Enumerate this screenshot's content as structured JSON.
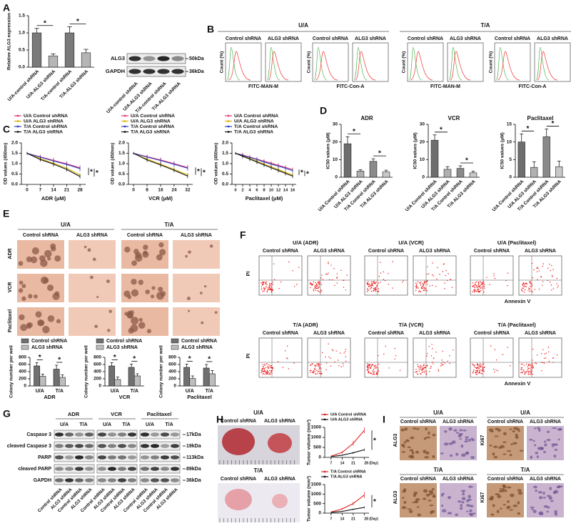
{
  "panel_labels": [
    "A",
    "B",
    "C",
    "D",
    "E",
    "F",
    "G",
    "H",
    "I"
  ],
  "chart_data": [
    {
      "type": "bar",
      "y_label": "Relative ALG3 expression",
      "categories": [
        "U/A-control shRNA",
        "U/A-ALG3 shRNA",
        "T/A-control shRNA",
        "T/A-ALG3 shRNA"
      ],
      "values": [
        1.0,
        0.33,
        1.0,
        0.42
      ],
      "errors": [
        0.13,
        0.06,
        0.18,
        0.1
      ],
      "colors": [
        "#7a7a7a",
        "#b5b5b5",
        "#7a7a7a",
        "#b5b5b5"
      ],
      "ylim": [
        0,
        1.5
      ],
      "yticks": [
        {
          "value": 0,
          "label": "0.0"
        },
        {
          "value": 0.5,
          "label": "0.5"
        },
        {
          "value": 1,
          "label": "1.0"
        },
        {
          "value": 1.5,
          "label": "1.5"
        }
      ],
      "annotations": [
        "*",
        "*"
      ]
    },
    {
      "type": "line",
      "x_label": "ADR (μM)",
      "y_label": "OD values (450nm)",
      "x": [
        0,
        7,
        14,
        21,
        28
      ],
      "xlim": [
        -3,
        31
      ],
      "xticks": [
        0,
        7,
        14,
        21,
        28
      ],
      "ylim": [
        0,
        2
      ],
      "yticks": [
        {
          "value": 0,
          "label": "0.0"
        },
        {
          "value": 0.5,
          "label": "0.5"
        },
        {
          "value": 1,
          "label": "1.0"
        },
        {
          "value": 1.5,
          "label": "1.5"
        },
        {
          "value": 2,
          "label": "2.0"
        }
      ],
      "series": [
        {
          "name": "U/A Control shRNA",
          "color": "#e8336b",
          "values": [
            1.5,
            1.33,
            1.16,
            0.99,
            0.8
          ],
          "errors": [
            0.06,
            0.1,
            0.12,
            0.12,
            0.12
          ]
        },
        {
          "name": "U/A ALG3 shRNA",
          "color": "#d6b400",
          "values": [
            1.5,
            1.24,
            1.02,
            0.78,
            0.45
          ],
          "errors": [
            0.06,
            0.1,
            0.12,
            0.12,
            0.1
          ]
        },
        {
          "name": "T/A Control shRNA",
          "color": "#2a3fbf",
          "values": [
            1.5,
            1.31,
            1.13,
            0.96,
            0.76
          ],
          "errors": [
            0.06,
            0.1,
            0.12,
            0.12,
            0.12
          ]
        },
        {
          "name": "T/A ALG3 shRNA",
          "color": "#111111",
          "values": [
            1.5,
            1.2,
            0.98,
            0.72,
            0.38
          ],
          "errors": [
            0.06,
            0.1,
            0.12,
            0.1,
            0.1
          ]
        }
      ],
      "annotations": [
        "*",
        "*"
      ]
    },
    {
      "type": "line",
      "x_label": "VCR (μM)",
      "y_label": "OD values (450nm)",
      "x": [
        0,
        8,
        16,
        24,
        32
      ],
      "xlim": [
        -3,
        35
      ],
      "xticks": [
        0,
        8,
        16,
        24,
        32
      ],
      "ylim": [
        0,
        2
      ],
      "yticks": [
        {
          "value": 0,
          "label": "0.0"
        },
        {
          "value": 0.5,
          "label": "0.5"
        },
        {
          "value": 1,
          "label": "1.0"
        },
        {
          "value": 1.5,
          "label": "1.5"
        },
        {
          "value": 2,
          "label": "2.0"
        }
      ],
      "series": [
        {
          "name": "U/A Control shRNA",
          "color": "#e8336b",
          "values": [
            1.5,
            1.34,
            1.18,
            1.0,
            0.82
          ],
          "errors": [
            0.06,
            0.1,
            0.12,
            0.12,
            0.12
          ]
        },
        {
          "name": "U/A ALG3 shRNA",
          "color": "#d6b400",
          "values": [
            1.5,
            1.22,
            0.98,
            0.72,
            0.46
          ],
          "errors": [
            0.06,
            0.1,
            0.12,
            0.12,
            0.1
          ]
        },
        {
          "name": "T/A Control shRNA",
          "color": "#2a3fbf",
          "values": [
            1.5,
            1.32,
            1.15,
            0.97,
            0.78
          ],
          "errors": [
            0.06,
            0.1,
            0.12,
            0.12,
            0.12
          ]
        },
        {
          "name": "T/A ALG3 shRNA",
          "color": "#111111",
          "values": [
            1.5,
            1.18,
            0.94,
            0.68,
            0.4
          ],
          "errors": [
            0.06,
            0.1,
            0.12,
            0.1,
            0.1
          ]
        }
      ],
      "annotations": [
        "*",
        "*"
      ]
    },
    {
      "type": "line",
      "x_label": "Paclitaxel (μM)",
      "y_label": "OD values (450nm)",
      "x": [
        0,
        2,
        4,
        6,
        8,
        10,
        12,
        14,
        16
      ],
      "xlim": [
        -1,
        17
      ],
      "xticks": [
        0,
        2,
        4,
        6,
        8,
        10,
        12,
        14,
        16
      ],
      "ylim": [
        0,
        2
      ],
      "yticks": [
        {
          "value": 0,
          "label": "0.0"
        },
        {
          "value": 0.5,
          "label": "0.5"
        },
        {
          "value": 1,
          "label": "1.0"
        },
        {
          "value": 1.5,
          "label": "1.5"
        },
        {
          "value": 2,
          "label": "2.0"
        }
      ],
      "series": [
        {
          "name": "U/A Control shRNA",
          "color": "#e8336b",
          "values": [
            1.5,
            1.42,
            1.32,
            1.22,
            1.12,
            1.02,
            0.92,
            0.82,
            0.72
          ],
          "errors": [
            0.06,
            0.1,
            0.1,
            0.1,
            0.1,
            0.1,
            0.1,
            0.1,
            0.1
          ]
        },
        {
          "name": "U/A ALG3 shRNA",
          "color": "#d6b400",
          "values": [
            1.5,
            1.38,
            1.25,
            1.12,
            0.98,
            0.85,
            0.72,
            0.58,
            0.45
          ],
          "errors": [
            0.06,
            0.1,
            0.1,
            0.1,
            0.1,
            0.1,
            0.1,
            0.1,
            0.1
          ]
        },
        {
          "name": "T/A Control shRNA",
          "color": "#2a3fbf",
          "values": [
            1.5,
            1.4,
            1.3,
            1.2,
            1.08,
            0.98,
            0.88,
            0.78,
            0.66
          ],
          "errors": [
            0.06,
            0.1,
            0.1,
            0.1,
            0.1,
            0.1,
            0.1,
            0.1,
            0.1
          ]
        },
        {
          "name": "T/A ALG3 shRNA",
          "color": "#111111",
          "values": [
            1.5,
            1.36,
            1.22,
            1.08,
            0.94,
            0.8,
            0.67,
            0.53,
            0.4
          ],
          "errors": [
            0.06,
            0.1,
            0.1,
            0.1,
            0.1,
            0.1,
            0.1,
            0.1,
            0.1
          ]
        }
      ],
      "annotations": [
        "*",
        "*"
      ]
    },
    {
      "type": "bar",
      "title": "ADR",
      "y_label": "IC50 values (μM)",
      "categories": [
        "U/A Control shRNA",
        "U/A ALG3 shRNA",
        "T/A Control shRNA",
        "T/A ALG3 shRNA"
      ],
      "values": [
        19,
        3.5,
        9,
        3
      ],
      "errors": [
        4,
        0.7,
        1.5,
        1
      ],
      "colors": [
        "#6e6e6e",
        "#b0b0b0",
        "#8a8a8a",
        "#c8c8c8"
      ],
      "ylim": [
        0,
        30
      ],
      "yticks": [
        0,
        10,
        20,
        30
      ],
      "annotations": [
        "*",
        "*"
      ]
    },
    {
      "type": "bar",
      "title": "VCR",
      "y_label": "IC50 values (μM)",
      "categories": [
        "U/A Control shRNA",
        "U/A ALG3 shRNA",
        "T/A Control shRNA",
        "T/A ALG3 shRNA"
      ],
      "values": [
        21,
        4.5,
        5,
        2.5
      ],
      "errors": [
        3,
        1.5,
        1.5,
        1
      ],
      "colors": [
        "#6e6e6e",
        "#b0b0b0",
        "#8a8a8a",
        "#c8c8c8"
      ],
      "ylim": [
        0,
        30
      ],
      "yticks": [
        0,
        10,
        20,
        30
      ],
      "annotations": [
        "*",
        "*"
      ]
    },
    {
      "type": "bar",
      "title": "Paclitaxel",
      "y_label": "IC50 values (μM)",
      "categories": [
        "U/A Control shRNA",
        "U/A ALG3 shRNA",
        "T/A Control shRNA",
        "T/A ALG3 shRNA"
      ],
      "values": [
        10,
        2.8,
        11.5,
        3
      ],
      "errors": [
        2.3,
        1.6,
        2.2,
        1.6
      ],
      "colors": [
        "#6e6e6e",
        "#b0b0b0",
        "#8a8a8a",
        "#c8c8c8"
      ],
      "ylim": [
        0,
        15
      ],
      "yticks": [
        0,
        5,
        10,
        15
      ],
      "annotations": [
        "*",
        "*"
      ]
    },
    {
      "type": "bar",
      "x_label": "ADR",
      "y_label": "Colony number per well",
      "categories": [
        "U/A",
        "T/A"
      ],
      "ylim": [
        0,
        800
      ],
      "yticks": [
        0,
        200,
        400,
        600,
        800
      ],
      "series": [
        {
          "name": "Control shRNA",
          "color": "#707070",
          "values": [
            560,
            470
          ],
          "errors": [
            90,
            110
          ]
        },
        {
          "name": "ALG3 shRNA",
          "color": "#bdbdbd",
          "values": [
            270,
            240
          ],
          "errors": [
            60,
            70
          ]
        }
      ],
      "annotations": [
        "*",
        "*"
      ]
    },
    {
      "type": "bar",
      "x_label": "VCR",
      "y_label": "Colony number per well",
      "categories": [
        "U/A",
        "T/A"
      ],
      "ylim": [
        0,
        800
      ],
      "yticks": [
        0,
        200,
        400,
        600,
        800
      ],
      "series": [
        {
          "name": "Control shRNA",
          "color": "#707070",
          "values": [
            560,
            520
          ],
          "errors": [
            90,
            90
          ]
        },
        {
          "name": "ALG3 shRNA",
          "color": "#bdbdbd",
          "values": [
            180,
            280
          ],
          "errors": [
            70,
            60
          ]
        }
      ],
      "annotations": [
        "*",
        "*"
      ]
    },
    {
      "type": "bar",
      "x_label": "Paclitaxel",
      "y_label": "Colony number per well",
      "categories": [
        "U/A",
        "T/A"
      ],
      "ylim": [
        0,
        800
      ],
      "yticks": [
        0,
        200,
        400,
        600,
        800
      ],
      "series": [
        {
          "name": "Control shRNA",
          "color": "#707070",
          "values": [
            520,
            500
          ],
          "errors": [
            90,
            100
          ]
        },
        {
          "name": "ALG3 shRNA",
          "color": "#bdbdbd",
          "values": [
            210,
            340
          ],
          "errors": [
            70,
            90
          ]
        }
      ],
      "annotations": [
        "*",
        "*"
      ]
    },
    {
      "type": "line",
      "y_label": "Tumor volume (mm³)",
      "x": [
        7,
        14,
        21,
        28
      ],
      "xlim": [
        3,
        31
      ],
      "xticks": [
        7,
        14,
        21,
        {
          "value": 28,
          "label": "28 (Day)"
        }
      ],
      "ylim": [
        0,
        1500
      ],
      "yticks": [
        0,
        500,
        1000,
        1500
      ],
      "series": [
        {
          "name": "U/A Control shRNA",
          "color": "#e02020",
          "values": [
            60,
            250,
            700,
            1350
          ],
          "errors": [
            20,
            60,
            120,
            150
          ]
        },
        {
          "name": "U/A ALG3 shRNA",
          "color": "#111111",
          "values": [
            40,
            110,
            230,
            380
          ],
          "errors": [
            10,
            30,
            50,
            60
          ]
        }
      ],
      "annotations": [
        "*"
      ]
    },
    {
      "type": "line",
      "y_label": "Tumor volume (mm³)",
      "x": [
        7,
        14,
        21,
        28
      ],
      "xlim": [
        3,
        31
      ],
      "xticks": [
        7,
        14,
        21,
        {
          "value": 28,
          "label": "28 (Day)"
        }
      ],
      "ylim": [
        0,
        1500
      ],
      "yticks": [
        0,
        500,
        1000,
        1500
      ],
      "series": [
        {
          "name": "T/A Control shRNA",
          "color": "#e02020",
          "values": [
            60,
            220,
            500,
            950
          ],
          "errors": [
            20,
            50,
            100,
            160
          ]
        },
        {
          "name": "T/A ALG3 shRNA",
          "color": "#111111",
          "values": [
            40,
            90,
            200,
            300
          ],
          "errors": [
            10,
            20,
            40,
            50
          ]
        }
      ],
      "annotations": [
        "*"
      ]
    }
  ],
  "blot_A": {
    "rows": [
      "ALG3",
      "GAPDH"
    ],
    "sizes": [
      "50kDa",
      "36kDa"
    ],
    "lanes": [
      "U/A-control shRNA",
      "U/A-ALG3 shRNA",
      "T/A-control shRNA",
      "T/A-ALG3 shRNA"
    ]
  },
  "flow_B": {
    "y_label": "Count (%)",
    "groups": [
      {
        "title": "U/A",
        "columns": [
          "Control shRNA",
          "ALG3 shRNA",
          "Control shRNA",
          "ALG3 shRNA"
        ],
        "x_labels": [
          "FITC-MAN-M",
          "FITC-Con-A"
        ]
      },
      {
        "title": "T/A",
        "columns": [
          "Control shRNA",
          "ALG3 shRNA",
          "Control shRNA",
          "ALG3 shRNA"
        ],
        "x_labels": [
          "FITC-MAN-M",
          "FITC-Con-A"
        ]
      }
    ]
  },
  "images_E": {
    "groups": [
      "U/A",
      "T/A"
    ],
    "columns": [
      "Control shRNA",
      "ALG3 shRNA",
      "Control shRNA",
      "ALG3 shRNA"
    ],
    "rows": [
      "ADR",
      "VCR",
      "Paclitaxel"
    ]
  },
  "flow_F": {
    "titles": [
      "U/A (ADR)",
      "U/A (VCR)",
      "U/A (Paclitaxel)",
      "T/A (ADR)",
      "T/A (VCR)",
      "T/A (Paclitaxel)"
    ],
    "columns": [
      "Control shRNA",
      "ALG3 shRNA"
    ],
    "y_label": "PI",
    "x_label": "Annexin V"
  },
  "blot_G": {
    "groups": [
      "ADR",
      "VCR",
      "Paclitaxel"
    ],
    "subgroups": [
      "U/A",
      "T/A"
    ],
    "rows": [
      "Caspase 3",
      "cleaved Caspase 3",
      "PARP",
      "cleaved PARP",
      "GAPDH"
    ],
    "sizes": [
      "17kDa",
      "19kDa",
      "113kDa",
      "89kDa",
      "36kDa"
    ],
    "lanes": [
      "Control shRNA",
      "ALG3 shRNA",
      "Control shRNA",
      "ALG3 shRNA"
    ]
  },
  "images_H": {
    "groups": [
      "U/A",
      "T/A"
    ],
    "columns": [
      "Control shRNA",
      "ALG3 shRNA"
    ]
  },
  "ihc_I": {
    "panels": [
      {
        "title": "U/A",
        "stain": "ALG3"
      },
      {
        "title": "U/A",
        "stain": "Ki67"
      },
      {
        "title": "T/A",
        "stain": "ALG3"
      },
      {
        "title": "T/A",
        "stain": "Ki67"
      }
    ],
    "columns": [
      "Control shRNA",
      "ALG3 shRNA"
    ]
  }
}
